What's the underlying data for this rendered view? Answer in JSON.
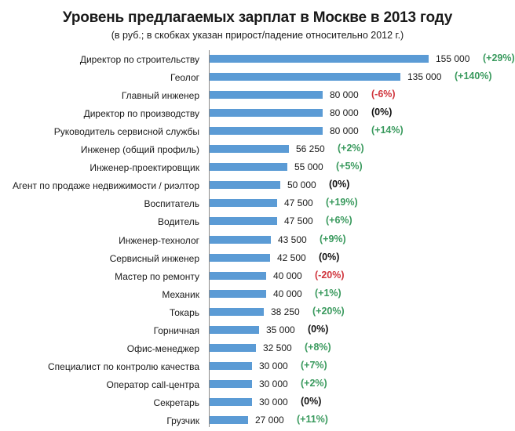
{
  "chart_data": {
    "type": "bar",
    "orientation": "horizontal",
    "title": "Уровень предлагаемых зарплат в Москве в 2013 году",
    "subtitle": "(в руб.; в скобках указан прирост/падение относительно 2012 г.)",
    "xlabel": "",
    "ylabel": "",
    "grid": false,
    "legend": null,
    "colors": {
      "bar": "#5b9bd5",
      "increase": "#3a9a5e",
      "decrease": "#d0343c",
      "no_change": "#111111"
    },
    "categories": [
      "Директор по строительству",
      "Геолог",
      "Главный инженер",
      "Директор по производству",
      "Руководитель сервисной службы",
      "Инженер (общий профиль)",
      "Инженер-проектировщик",
      "Агент по продаже недвижимости / риэлтор",
      "Воспитатель",
      "Водитель",
      "Инженер-технолог",
      "Сервисный инженер",
      "Мастер по ремонту",
      "Механик",
      "Токарь",
      "Горничная",
      "Офис-менеджер",
      "Специалист по контролю качества",
      "Оператор call-центра",
      "Секретарь",
      "Грузчик"
    ],
    "values": [
      155000,
      135000,
      80000,
      80000,
      80000,
      56250,
      55000,
      50000,
      47500,
      47500,
      43500,
      42500,
      40000,
      40000,
      38250,
      35000,
      32500,
      30000,
      30000,
      30000,
      27000
    ],
    "value_labels": [
      "155 000",
      "135 000",
      "80 000",
      "80 000",
      "80 000",
      "56 250",
      "55 000",
      "50 000",
      "47 500",
      "47 500",
      "43 500",
      "42 500",
      "40 000",
      "40 000",
      "38 250",
      "35 000",
      "32 500",
      "30 000",
      "30 000",
      "30 000",
      "27 000"
    ],
    "change_labels": [
      "(+29%)",
      "(+140%)",
      "(-6%)",
      "(0%)",
      "(+14%)",
      "(+2%)",
      "(+5%)",
      "(0%)",
      "(+19%)",
      "(+6%)",
      "(+9%)",
      "(0%)",
      "(-20%)",
      "(+1%)",
      "(+20%)",
      "(0%)",
      "(+8%)",
      "(+7%)",
      "(+2%)",
      "(0%)",
      "(+11%)"
    ],
    "change_pct": [
      29,
      140,
      -6,
      0,
      14,
      2,
      5,
      0,
      19,
      6,
      9,
      0,
      -20,
      1,
      20,
      0,
      8,
      7,
      2,
      0,
      11
    ],
    "xlim": [
      0,
      155000
    ]
  }
}
